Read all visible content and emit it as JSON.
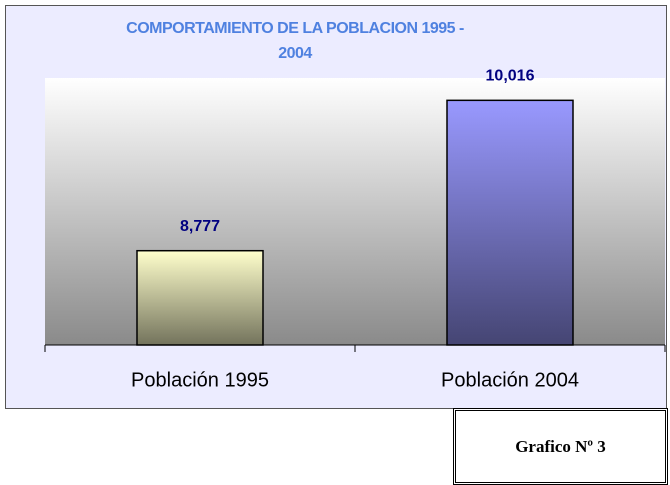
{
  "chart_data": {
    "type": "bar",
    "title": "COMPORTAMIENTO DE LA POBLACION 1995 - 2004",
    "categories": [
      "Población 1995",
      "Población 2004"
    ],
    "values": [
      8777,
      10016
    ],
    "value_labels": [
      "8,777",
      "10,016"
    ],
    "colors": [
      "#ffffcc",
      "#9999ff"
    ],
    "ylim": [
      8000,
      10200
    ],
    "annotation": "Grafico Nº 3"
  }
}
